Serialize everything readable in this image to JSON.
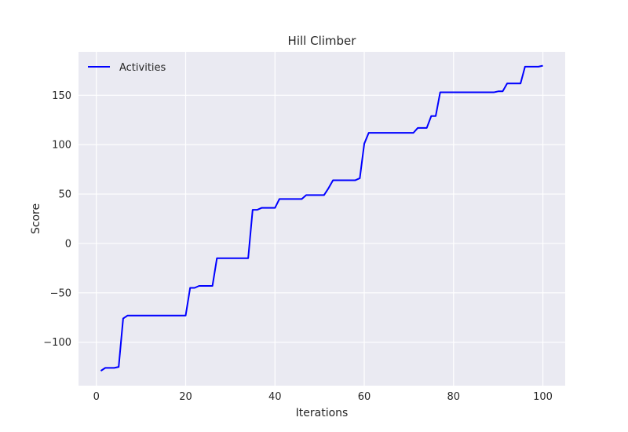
{
  "chart_data": {
    "type": "line",
    "title": "Hill Climber",
    "xlabel": "Iterations",
    "ylabel": "Score",
    "xlim": [
      -4,
      105
    ],
    "ylim": [
      -144,
      194
    ],
    "xticks": [
      0,
      20,
      40,
      60,
      80,
      100
    ],
    "yticks": [
      -100,
      -50,
      0,
      50,
      100,
      150
    ],
    "ytick_labels": [
      "−100",
      "−50",
      "0",
      "50",
      "100",
      "150"
    ],
    "grid": true,
    "legend_position": "top-left",
    "colors": {
      "background": "#eaeaf2",
      "grid": "#ffffff",
      "line": "#0000ff"
    },
    "series": [
      {
        "name": "Activities",
        "x": [
          1,
          2,
          3,
          4,
          5,
          6,
          7,
          8,
          9,
          10,
          11,
          12,
          13,
          14,
          15,
          16,
          17,
          18,
          19,
          20,
          21,
          22,
          23,
          24,
          25,
          26,
          27,
          28,
          29,
          30,
          31,
          32,
          33,
          34,
          35,
          36,
          37,
          38,
          39,
          40,
          41,
          42,
          43,
          44,
          45,
          46,
          47,
          48,
          49,
          50,
          51,
          52,
          53,
          54,
          55,
          56,
          57,
          58,
          59,
          60,
          61,
          62,
          63,
          64,
          65,
          66,
          67,
          68,
          69,
          70,
          71,
          72,
          73,
          74,
          75,
          76,
          77,
          78,
          79,
          80,
          81,
          82,
          83,
          84,
          85,
          86,
          87,
          88,
          89,
          90,
          91,
          92,
          93,
          94,
          95,
          96,
          97,
          98,
          99,
          100
        ],
        "values": [
          -129,
          -126,
          -126,
          -126,
          -125,
          -76,
          -73,
          -73,
          -73,
          -73,
          -73,
          -73,
          -73,
          -73,
          -73,
          -73,
          -73,
          -73,
          -73,
          -73,
          -45,
          -45,
          -43,
          -43,
          -43,
          -43,
          -15,
          -15,
          -15,
          -15,
          -15,
          -15,
          -15,
          -15,
          34,
          34,
          36,
          36,
          36,
          36,
          45,
          45,
          45,
          45,
          45,
          45,
          49,
          49,
          49,
          49,
          49,
          56,
          64,
          64,
          64,
          64,
          64,
          64,
          66,
          101,
          112,
          112,
          112,
          112,
          112,
          112,
          112,
          112,
          112,
          112,
          112,
          117,
          117,
          117,
          129,
          129,
          153,
          153,
          153,
          153,
          153,
          153,
          153,
          153,
          153,
          153,
          153,
          153,
          153,
          154,
          154,
          162,
          162,
          162,
          162,
          179,
          179,
          179,
          179,
          180
        ]
      }
    ]
  }
}
